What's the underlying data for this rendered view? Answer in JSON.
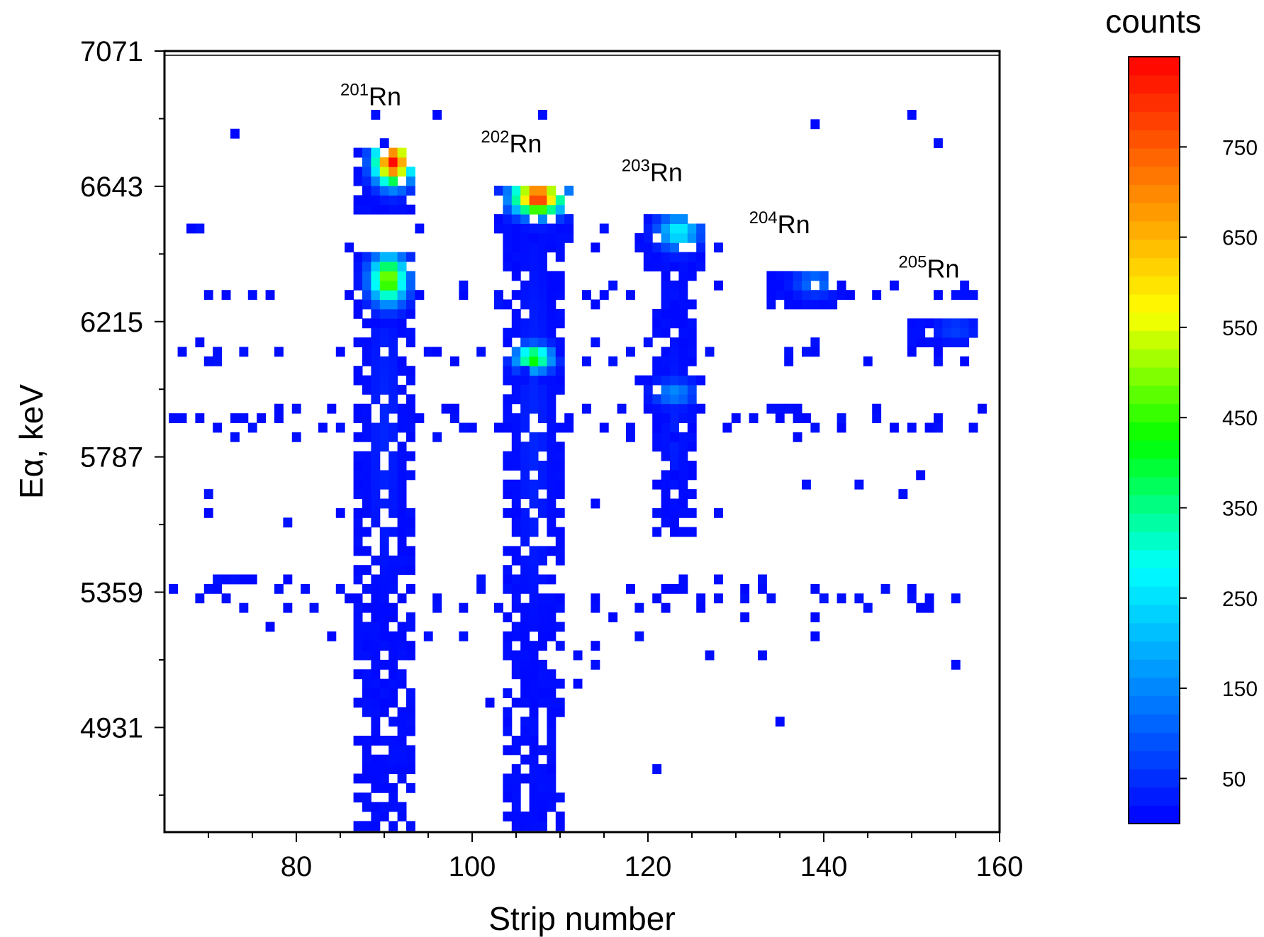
{
  "chart_data": {
    "type": "heatmap",
    "xlabel": "Strip number",
    "ylabel": "Eα, keV",
    "xlim": [
      65,
      160
    ],
    "ylim": [
      4600,
      7071
    ],
    "x_ticks": [
      80,
      100,
      120,
      140,
      160
    ],
    "y_ticks": [
      4931,
      5359,
      5787,
      6215,
      6643,
      7071
    ],
    "colorbar": {
      "title": "counts",
      "range": [
        0,
        850
      ],
      "ticks": [
        50,
        150,
        250,
        350,
        450,
        550,
        650,
        750
      ],
      "colormap": [
        "#0000ff",
        "#0080ff",
        "#00ffff",
        "#00ff00",
        "#ffff00",
        "#ff8000",
        "#ff0000"
      ]
    },
    "annotations": [
      {
        "mass": "201",
        "element": "Rn",
        "x": 85,
        "y": 6900
      },
      {
        "mass": "202",
        "element": "Rn",
        "x": 101,
        "y": 6750
      },
      {
        "mass": "203",
        "element": "Rn",
        "x": 117,
        "y": 6660
      },
      {
        "mass": "204",
        "element": "Rn",
        "x": 131.5,
        "y": 6495
      },
      {
        "mass": "205",
        "element": "Rn",
        "x": 148.5,
        "y": 6355
      }
    ],
    "clusters": [
      {
        "x": [
          87,
          93
        ],
        "y": [
          6580,
          6780
        ],
        "peak": 840,
        "peak_x": 91,
        "peak_y": 6730
      },
      {
        "x": [
          87,
          93
        ],
        "y": [
          6200,
          6420
        ],
        "peak": 520,
        "peak_x": 90.5,
        "peak_y": 6340
      },
      {
        "x": [
          103,
          111
        ],
        "y": [
          6480,
          6640
        ],
        "peak": 820,
        "peak_y_offset": 6630,
        "peak_x": 107.5,
        "peak_y": 6610
      },
      {
        "x": [
          104,
          110
        ],
        "y": [
          6020,
          6140
        ],
        "peak": 450,
        "peak_x": 107,
        "peak_y": 6090
      },
      {
        "x": [
          119,
          126
        ],
        "y": [
          6400,
          6560
        ],
        "peak": 280,
        "peak_x": 123.5,
        "peak_y": 6510
      },
      {
        "x": [
          119,
          126
        ],
        "y": [
          5930,
          6020
        ],
        "peak": 160,
        "peak_x": 123,
        "peak_y": 5980
      },
      {
        "x": [
          134,
          141
        ],
        "y": [
          6260,
          6360
        ],
        "peak": 140,
        "peak_x": 139,
        "peak_y": 6330
      },
      {
        "x": [
          150,
          157
        ],
        "y": [
          6160,
          6220
        ],
        "peak": 70,
        "peak_x": 155,
        "peak_y": 6200
      },
      {
        "x": [
          87,
          93
        ],
        "y": [
          4600,
          6200
        ],
        "peak": 40,
        "peak_x": 90,
        "peak_y": 5900
      },
      {
        "x": [
          104,
          110
        ],
        "y": [
          4600,
          6480
        ],
        "peak": 40,
        "peak_x": 107,
        "peak_y": 5900
      },
      {
        "x": [
          121,
          125
        ],
        "y": [
          5550,
          6400
        ],
        "peak": 35,
        "peak_x": 123,
        "peak_y": 5900
      }
    ]
  }
}
